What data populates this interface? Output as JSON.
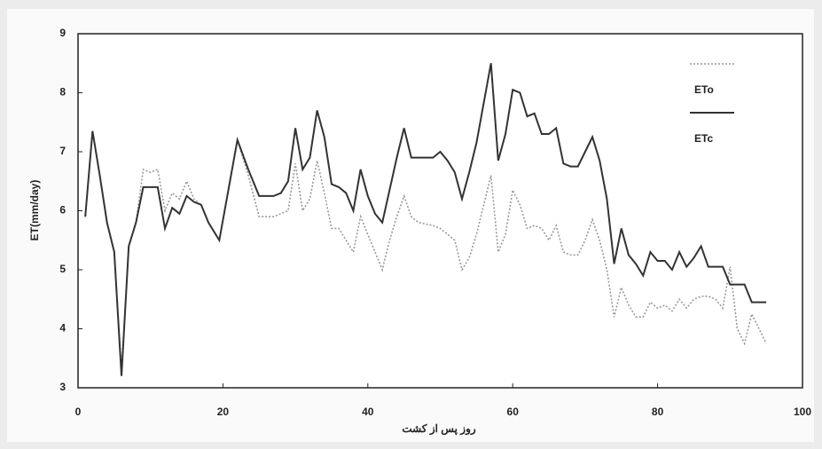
{
  "chart_data": {
    "type": "line",
    "x_label": "روز پس از کشت",
    "y_label": "ET(mm/day)",
    "x": [
      1,
      2,
      3,
      4,
      5,
      6,
      7,
      8,
      9,
      10,
      11,
      12,
      13,
      14,
      15,
      16,
      17,
      18,
      19.5,
      22,
      23.5,
      25,
      27,
      28,
      29,
      30,
      31,
      32,
      33,
      34,
      35,
      36,
      37,
      38,
      39,
      40,
      41,
      42,
      43,
      44,
      45,
      46,
      47,
      49,
      50,
      51,
      52,
      53,
      54,
      55,
      57,
      58,
      59,
      60,
      61,
      62,
      63,
      64,
      65,
      66,
      67,
      68,
      69,
      70,
      71,
      72,
      73,
      74,
      75,
      76,
      77,
      78,
      79,
      80,
      81,
      82,
      83,
      84,
      85,
      86,
      87,
      88,
      89,
      90,
      91,
      92,
      93,
      95
    ],
    "series": [
      {
        "name": "ETo",
        "color": "#999999",
        "dash": true,
        "values": [
          5.9,
          7.35,
          6.6,
          5.8,
          5.3,
          3.3,
          5.4,
          5.8,
          6.7,
          6.65,
          6.7,
          6.0,
          6.3,
          6.2,
          6.5,
          6.2,
          6.1,
          5.8,
          5.5,
          7.2,
          6.6,
          5.9,
          5.9,
          5.95,
          6.0,
          6.8,
          6.0,
          6.2,
          6.85,
          6.3,
          5.7,
          5.7,
          5.5,
          5.3,
          5.9,
          5.6,
          5.3,
          5.0,
          5.5,
          5.9,
          6.25,
          5.9,
          5.8,
          5.75,
          5.7,
          5.6,
          5.5,
          5.0,
          5.2,
          5.6,
          6.6,
          5.3,
          5.6,
          6.35,
          6.1,
          5.7,
          5.75,
          5.7,
          5.5,
          5.75,
          5.3,
          5.25,
          5.25,
          5.5,
          5.85,
          5.5,
          5.0,
          4.2,
          4.7,
          4.4,
          4.2,
          4.2,
          4.45,
          4.35,
          4.4,
          4.3,
          4.5,
          4.35,
          4.5,
          4.55,
          4.55,
          4.5,
          4.35,
          5.05,
          4.0,
          3.75,
          4.25,
          3.75
        ]
      },
      {
        "name": "ETc",
        "color": "#333333",
        "dash": false,
        "values": [
          5.9,
          7.35,
          6.6,
          5.8,
          5.3,
          3.2,
          5.4,
          5.8,
          6.4,
          6.4,
          6.4,
          5.7,
          6.05,
          5.95,
          6.25,
          6.15,
          6.1,
          5.8,
          5.5,
          7.2,
          6.7,
          6.25,
          6.25,
          6.3,
          6.5,
          7.4,
          6.7,
          6.9,
          7.7,
          7.25,
          6.45,
          6.4,
          6.3,
          6.0,
          6.7,
          6.25,
          5.95,
          5.8,
          6.35,
          6.9,
          7.4,
          6.9,
          6.9,
          6.9,
          7.0,
          6.85,
          6.65,
          6.2,
          6.65,
          7.15,
          8.5,
          6.85,
          7.3,
          8.05,
          8.0,
          7.6,
          7.65,
          7.3,
          7.3,
          7.4,
          6.8,
          6.75,
          6.75,
          7.0,
          7.25,
          6.85,
          6.2,
          5.1,
          5.7,
          5.25,
          5.1,
          4.9,
          5.3,
          5.15,
          5.15,
          5.0,
          5.3,
          5.05,
          5.2,
          5.4,
          5.05,
          5.05,
          5.05,
          4.75,
          4.75,
          4.75,
          4.45,
          4.45
        ]
      }
    ],
    "xlim": [
      0,
      100
    ],
    "xticks": [
      0,
      20,
      40,
      60,
      80,
      100
    ],
    "ylim": [
      3,
      9
    ],
    "yticks": [
      3,
      4,
      5,
      6,
      7,
      8,
      9
    ],
    "legend": "top-right"
  }
}
